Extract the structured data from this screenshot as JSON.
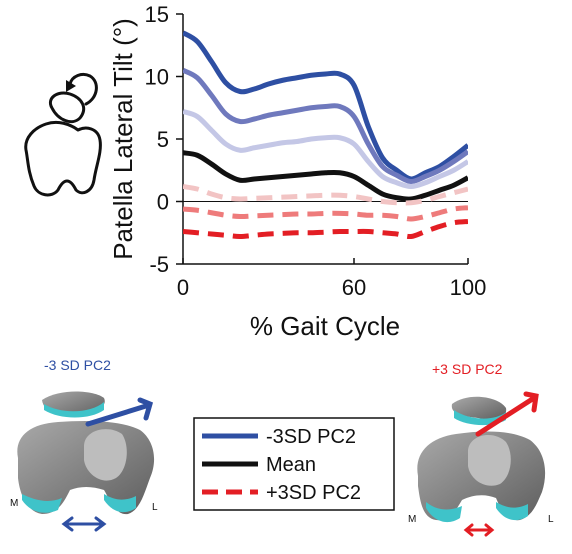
{
  "chart_data": {
    "type": "line",
    "xlabel": "% Gait Cycle",
    "ylabel": "Patella Lateral Tilt (°)",
    "xlim": [
      0,
      100
    ],
    "ylim": [
      -5,
      15
    ],
    "xticks": [
      "0",
      "60",
      "100"
    ],
    "yticks": [
      "-5",
      "0",
      "5",
      "10",
      "15"
    ],
    "x": [
      0,
      5,
      10,
      15,
      20,
      25,
      30,
      35,
      40,
      45,
      50,
      55,
      60,
      65,
      70,
      75,
      80,
      85,
      90,
      95,
      100
    ],
    "series": [
      {
        "color": "#2e4fa3",
        "dash": false,
        "values": [
          13.5,
          12.8,
          11.2,
          9.5,
          8.8,
          9.0,
          9.4,
          9.7,
          9.9,
          10.1,
          10.2,
          10.2,
          9.3,
          6.0,
          3.5,
          2.5,
          1.8,
          2.3,
          2.8,
          3.6,
          4.5
        ]
      },
      {
        "color": "#6f79bd",
        "dash": false,
        "values": [
          10.5,
          9.9,
          8.5,
          7.0,
          6.4,
          6.6,
          6.9,
          7.1,
          7.3,
          7.5,
          7.6,
          7.6,
          6.8,
          4.6,
          2.8,
          2.1,
          1.6,
          2.0,
          2.5,
          3.2,
          4.0
        ]
      },
      {
        "color": "#c4c7e6",
        "dash": false,
        "values": [
          7.2,
          6.8,
          5.7,
          4.6,
          4.1,
          4.3,
          4.5,
          4.7,
          4.8,
          5.0,
          5.1,
          5.1,
          4.6,
          3.2,
          2.0,
          1.5,
          1.2,
          1.5,
          2.0,
          2.5,
          3.2
        ]
      },
      {
        "color": "#111111",
        "dash": false,
        "values": [
          3.9,
          3.7,
          3.0,
          2.2,
          1.7,
          1.8,
          1.9,
          2.0,
          2.1,
          2.2,
          2.3,
          2.3,
          2.0,
          1.3,
          0.6,
          0.3,
          0.2,
          0.5,
          0.9,
          1.3,
          1.9
        ]
      },
      {
        "color": "#f2c4c4",
        "dash": true,
        "values": [
          1.2,
          1.0,
          0.6,
          0.3,
          0.2,
          0.25,
          0.3,
          0.35,
          0.4,
          0.45,
          0.5,
          0.5,
          0.4,
          0.2,
          0.0,
          -0.1,
          -0.1,
          0.1,
          0.4,
          0.7,
          1.0
        ]
      },
      {
        "color": "#ee7b7b",
        "dash": true,
        "values": [
          -0.6,
          -0.7,
          -0.9,
          -1.1,
          -1.2,
          -1.15,
          -1.1,
          -1.05,
          -1.0,
          -1.0,
          -0.95,
          -0.95,
          -1.0,
          -1.1,
          -1.1,
          -1.2,
          -1.4,
          -1.2,
          -0.9,
          -0.6,
          -0.5
        ]
      },
      {
        "color": "#e31e24",
        "dash": true,
        "values": [
          -2.4,
          -2.5,
          -2.6,
          -2.7,
          -2.8,
          -2.7,
          -2.6,
          -2.55,
          -2.5,
          -2.5,
          -2.45,
          -2.4,
          -2.4,
          -2.4,
          -2.5,
          -2.6,
          -2.8,
          -2.4,
          -2.0,
          -1.7,
          -1.6
        ]
      }
    ],
    "legend": {
      "placement": "bottom-center",
      "entries": [
        {
          "label": "-3SD PC2",
          "color": "#2e4fa3",
          "dash": false
        },
        {
          "label": "Mean",
          "color": "#111111",
          "dash": false
        },
        {
          "label": "+3SD PC2",
          "color": "#e31e24",
          "dash": true
        }
      ]
    },
    "annotations": {
      "left_panel_label": "-3 SD PC2",
      "right_panel_label": "+3 SD PC2",
      "medial_label": "M",
      "lateral_label": "L"
    },
    "colors": {
      "negative": "#2e4fa3",
      "positive": "#e31e24",
      "bone": "#8a8a8a",
      "cartilage": "#3fc3c9"
    },
    "grid": false
  }
}
